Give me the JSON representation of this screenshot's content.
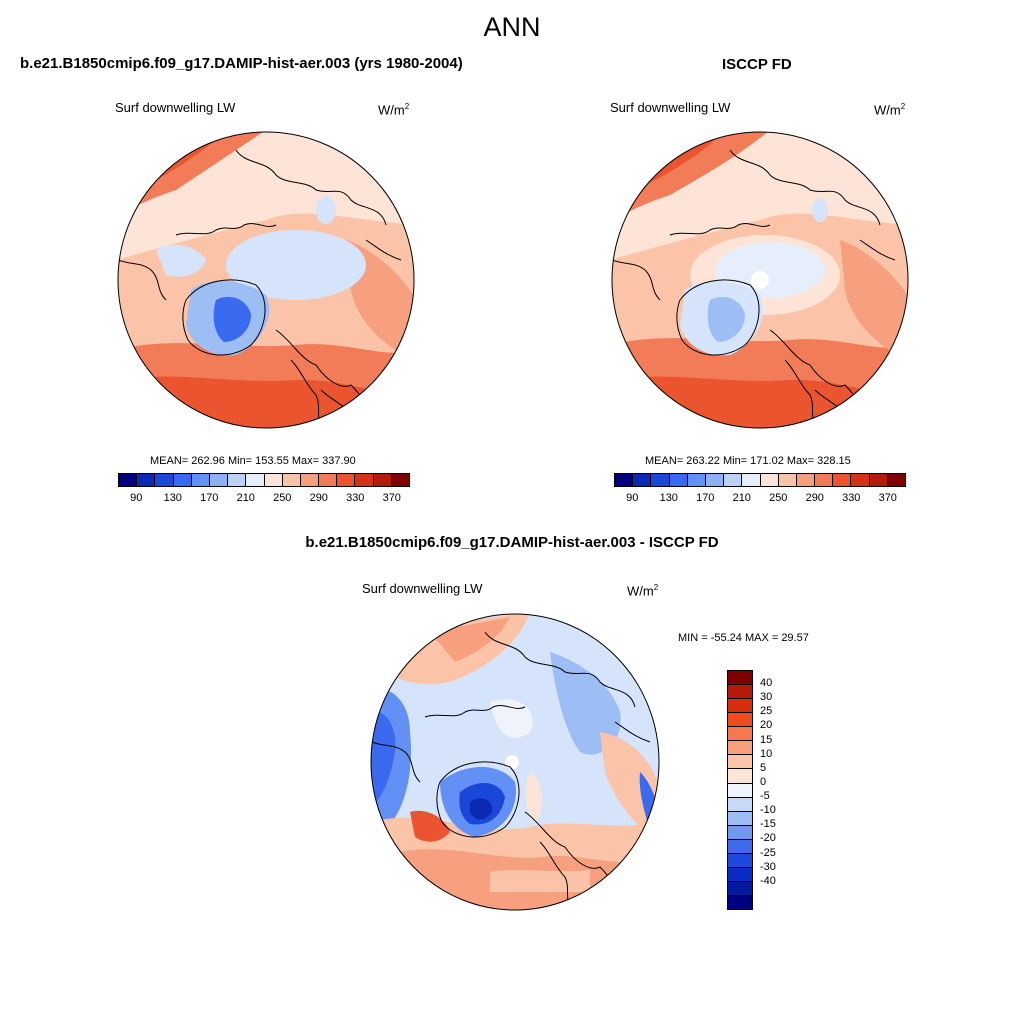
{
  "main_title": "ANN",
  "panels": [
    {
      "title": "b.e21.B1850cmip6.f09_g17.DAMIP-hist-aer.003 (yrs 1980-2004)",
      "variable": "Surf downwelling LW",
      "unit_base": "W/m",
      "unit_sup": "2",
      "stats": "MEAN= 262.96  Min= 153.55  Max= 337.90"
    },
    {
      "title": "ISCCP FD",
      "variable": "Surf downwelling LW",
      "unit_base": "W/m",
      "unit_sup": "2",
      "stats": "MEAN= 263.22  Min= 171.02  Max= 328.15"
    },
    {
      "title": "b.e21.B1850cmip6.f09_g17.DAMIP-hist-aer.003 - ISCCP FD",
      "variable": "Surf downwelling LW",
      "unit_base": "W/m",
      "unit_sup": "2",
      "stats": "MIN = -55.24 MAX =  29.57"
    }
  ],
  "colorbar_abs": {
    "colors": [
      "#00007f",
      "#0a2ab4",
      "#1a47d8",
      "#3a6af0",
      "#6390f5",
      "#8fb0f5",
      "#bcd1f7",
      "#e6eefb",
      "#fde4d6",
      "#fbc4a8",
      "#f7a07f",
      "#f27b58",
      "#ea5530",
      "#d63216",
      "#b31a0b",
      "#7f0000"
    ],
    "tick_labels": [
      "90",
      "130",
      "170",
      "210",
      "250",
      "290",
      "330",
      "370"
    ]
  },
  "colorbar_diff": {
    "colors": [
      "#7f0000",
      "#b31a0b",
      "#d62f10",
      "#f24a1e",
      "#f6784e",
      "#f8a07c",
      "#fbc5a8",
      "#fde4d6",
      "#eef3fc",
      "#c7d9f7",
      "#9dbdf5",
      "#7199f1",
      "#3f6aea",
      "#1f49de",
      "#0a2cc4",
      "#001aa0",
      "#00007f"
    ],
    "tick_labels": [
      "40",
      "30",
      "25",
      "20",
      "15",
      "10",
      "5",
      "0",
      "-5",
      "-10",
      "-15",
      "-20",
      "-25",
      "-30",
      "-40"
    ]
  },
  "map_colors": {
    "deep_red": "#d8361a",
    "red": "#f05a30",
    "orange": "#f7a07f",
    "salmon": "#fbc4a8",
    "peach": "#fde4d6",
    "pale_blue": "#d5e4fb",
    "light_blue": "#9dbdf5",
    "blue": "#3a6af0",
    "dark_blue": "#0a2ab4"
  }
}
